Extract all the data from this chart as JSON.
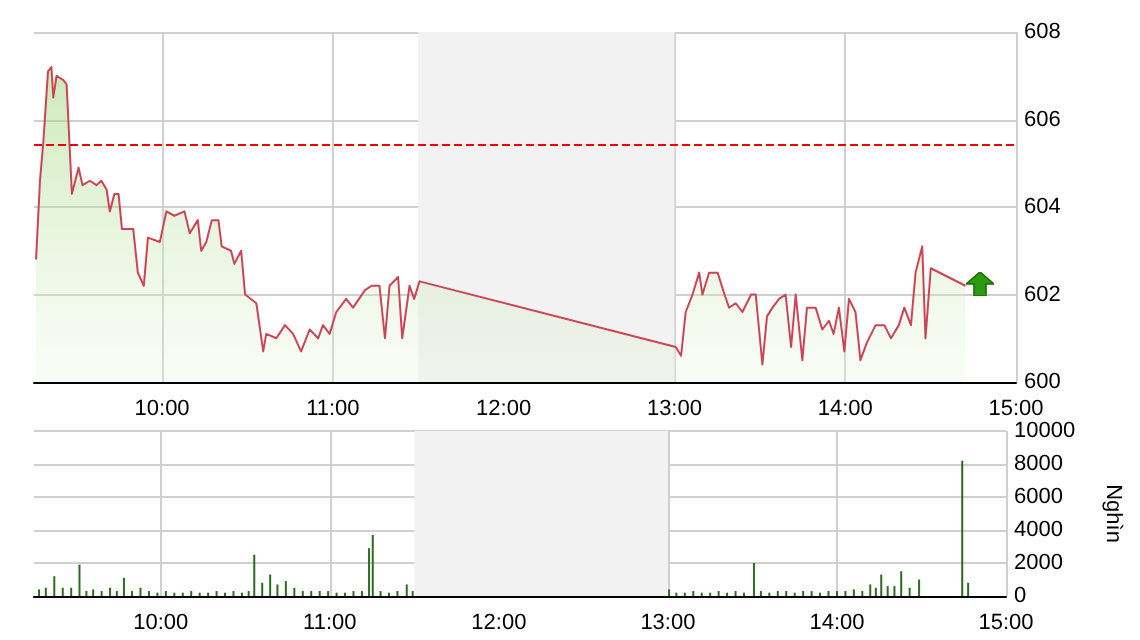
{
  "chart_data": [
    {
      "type": "area",
      "xlim": [
        9.25,
        15
      ],
      "xticks": [
        {
          "value": 10,
          "label": "10:00"
        },
        {
          "value": 11,
          "label": "11:00"
        },
        {
          "value": 12,
          "label": "12:00"
        },
        {
          "value": 13,
          "label": "13:00"
        },
        {
          "value": 14,
          "label": "14:00"
        },
        {
          "value": 15,
          "label": "15:00"
        }
      ],
      "ylim": [
        600,
        608
      ],
      "yticks": [
        600,
        602,
        604,
        606,
        608
      ],
      "grid": true,
      "marker": "none",
      "series": [
        {
          "color": "#cc4455",
          "x": [
            9.262,
            9.285,
            9.305,
            9.332,
            9.352,
            9.363,
            9.382,
            9.422,
            9.441,
            9.472,
            9.511,
            9.534,
            9.577,
            9.616,
            9.644,
            9.675,
            9.694,
            9.721,
            9.745,
            9.765,
            9.831,
            9.858,
            9.893,
            9.917,
            9.987,
            10.025,
            10.072,
            10.131,
            10.162,
            10.209,
            10.229,
            10.259,
            10.291,
            10.33,
            10.349,
            10.404,
            10.423,
            10.463,
            10.486,
            10.552,
            10.592,
            10.61,
            10.669,
            10.72,
            10.767,
            10.814,
            10.864,
            10.914,
            10.942,
            10.981,
            11.02,
            11.078,
            11.118,
            11.188,
            11.227,
            11.273,
            11.305,
            11.332,
            11.382,
            11.406,
            11.449,
            11.476,
            11.507,
            13.008,
            13.039,
            13.066,
            13.106,
            13.145,
            13.164,
            13.203,
            13.253,
            13.293,
            13.32,
            13.359,
            13.398,
            13.449,
            13.476,
            13.515,
            13.542,
            13.574,
            13.613,
            13.651,
            13.683,
            13.71,
            13.749,
            13.776,
            13.827,
            13.866,
            13.905,
            13.932,
            13.963,
            13.995,
            14.022,
            14.06,
            14.089,
            14.127,
            14.178,
            14.229,
            14.268,
            14.314,
            14.346,
            14.385,
            14.412,
            14.451,
            14.47,
            14.501,
            14.704
          ],
          "values": [
            602.8,
            604.6,
            605.5,
            607.1,
            607.2,
            606.5,
            607.0,
            606.9,
            606.8,
            604.3,
            604.9,
            604.5,
            604.6,
            604.5,
            604.6,
            604.4,
            603.9,
            604.3,
            604.3,
            603.5,
            603.5,
            602.5,
            602.2,
            603.3,
            603.2,
            603.9,
            603.8,
            603.9,
            603.4,
            603.7,
            603.0,
            603.2,
            603.7,
            603.7,
            603.1,
            603.0,
            602.7,
            603.0,
            602.0,
            601.8,
            600.7,
            601.1,
            601.0,
            601.3,
            601.1,
            600.7,
            601.2,
            601.0,
            601.3,
            601.1,
            601.6,
            601.9,
            601.7,
            602.1,
            602.2,
            602.2,
            601.0,
            602.2,
            602.4,
            601.0,
            602.2,
            601.9,
            602.3,
            600.8,
            600.6,
            601.6,
            602.0,
            602.5,
            602.0,
            602.5,
            602.5,
            602.0,
            601.7,
            601.8,
            601.6,
            602.0,
            602.0,
            600.4,
            601.5,
            601.7,
            601.9,
            602.0,
            600.8,
            602.0,
            600.5,
            601.7,
            601.7,
            601.2,
            601.4,
            601.1,
            601.7,
            600.7,
            601.9,
            601.6,
            600.5,
            600.9,
            601.3,
            601.3,
            601.0,
            601.3,
            601.7,
            601.3,
            602.5,
            603.1,
            601.0,
            602.6,
            602.2
          ]
        }
      ],
      "ref_lines": [
        {
          "axis": "y",
          "value": 605.45,
          "color": "#ee0000",
          "line_style": "dashed"
        }
      ],
      "bands": [
        {
          "axis": "x",
          "from": 11.5,
          "to": 13,
          "color": "#f2f2f2"
        }
      ]
    },
    {
      "type": "bar",
      "ylabel": "Nghìn",
      "xlim": [
        9.25,
        15
      ],
      "xticks": [
        {
          "value": 10,
          "label": "10:00"
        },
        {
          "value": 11,
          "label": "11:00"
        },
        {
          "value": 12,
          "label": "12:00"
        },
        {
          "value": 13,
          "label": "13:00"
        },
        {
          "value": 14,
          "label": "14:00"
        },
        {
          "value": 15,
          "label": "15:00"
        }
      ],
      "ylim": [
        0,
        10000
      ],
      "yticks": [
        0,
        2000,
        4000,
        6000,
        8000,
        10000
      ],
      "grid": true,
      "series": [
        {
          "color": "#2e6b1f",
          "x": [
            9.28,
            9.32,
            9.37,
            9.42,
            9.47,
            9.519,
            9.56,
            9.6,
            9.65,
            9.7,
            9.74,
            9.782,
            9.83,
            9.88,
            9.93,
            9.98,
            10.03,
            10.08,
            10.13,
            10.18,
            10.23,
            10.28,
            10.33,
            10.38,
            10.43,
            10.48,
            10.52,
            10.553,
            10.6,
            10.647,
            10.69,
            10.74,
            10.79,
            10.84,
            10.89,
            10.94,
            10.99,
            11.04,
            11.09,
            11.14,
            11.19,
            11.232,
            11.254,
            11.3,
            11.35,
            11.4,
            11.455,
            11.49,
            13.007,
            13.05,
            13.1,
            13.15,
            13.2,
            13.25,
            13.3,
            13.35,
            13.4,
            13.45,
            13.509,
            13.55,
            13.6,
            13.65,
            13.7,
            13.75,
            13.8,
            13.85,
            13.9,
            13.95,
            14.0,
            14.05,
            14.1,
            14.15,
            14.197,
            14.23,
            14.262,
            14.3,
            14.34,
            14.38,
            14.43,
            14.486,
            14.741,
            14.776
          ],
          "values": [
            400,
            500,
            1200,
            500,
            500,
            1900,
            300,
            400,
            300,
            500,
            300,
            1100,
            300,
            500,
            300,
            200,
            300,
            200,
            200,
            300,
            200,
            200,
            300,
            200,
            300,
            200,
            300,
            2500,
            800,
            1300,
            700,
            900,
            500,
            300,
            300,
            300,
            300,
            200,
            200,
            300,
            300,
            2900,
            3700,
            300,
            200,
            300,
            700,
            300,
            400,
            200,
            200,
            300,
            200,
            200,
            300,
            200,
            300,
            200,
            2000,
            300,
            200,
            300,
            300,
            200,
            300,
            300,
            200,
            300,
            300,
            300,
            400,
            300,
            700,
            500,
            1300,
            600,
            600,
            1500,
            500,
            1000,
            8200,
            800
          ]
        }
      ],
      "bands": [
        {
          "axis": "x",
          "from": 11.5,
          "to": 13,
          "color": "#f2f2f2"
        }
      ]
    }
  ]
}
